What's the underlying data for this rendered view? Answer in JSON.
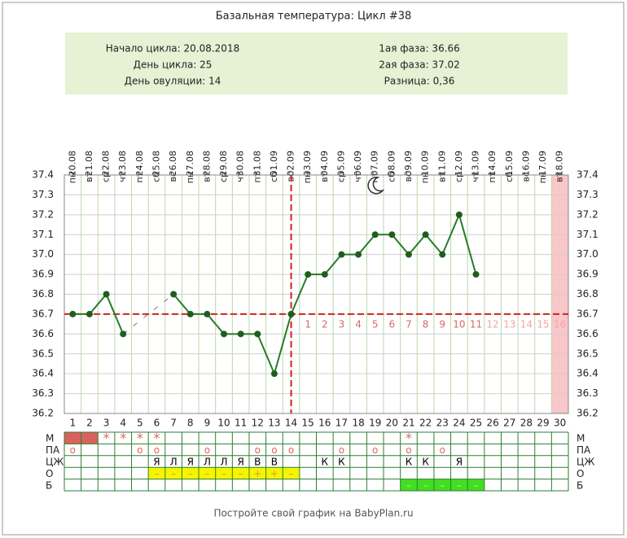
{
  "chart_data": {
    "type": "line",
    "title": "Базальная температура: Цикл #38",
    "info_left": [
      "Начало цикла: 20.08.2018",
      "День цикла: 25",
      "День овуляции: 14"
    ],
    "info_right": [
      "1ая фаза: 36.66",
      "2ая фаза: 37.02",
      "Разница: 0,36"
    ],
    "dates": [
      "20.08",
      "21.08",
      "22.08",
      "23.08",
      "24.08",
      "25.08",
      "26.08",
      "27.08",
      "28.08",
      "29.08",
      "30.08",
      "31.08",
      "01.09",
      "02.09",
      "03.09",
      "04.09",
      "05.09",
      "06.09",
      "07.09",
      "08.09",
      "09.09",
      "10.09",
      "11.09",
      "12.09",
      "13.09",
      "14.09",
      "15.09",
      "16.09",
      "17.09",
      "18.09"
    ],
    "weekdays": [
      "пн",
      "вт",
      "ср",
      "чт",
      "пт",
      "сб",
      "вс",
      "пн",
      "вт",
      "ср",
      "чт",
      "пт",
      "сб",
      "вс",
      "пн",
      "вт",
      "ср",
      "чт",
      "пт",
      "сб",
      "вс",
      "пн",
      "вт",
      "ср",
      "чт",
      "пт",
      "сб",
      "вс",
      "пн",
      "вт"
    ],
    "categories": [
      "1",
      "2",
      "3",
      "4",
      "5",
      "6",
      "7",
      "8",
      "9",
      "10",
      "11",
      "12",
      "13",
      "14",
      "15",
      "16",
      "17",
      "18",
      "19",
      "20",
      "21",
      "22",
      "23",
      "24",
      "25",
      "26",
      "27",
      "28",
      "29",
      "30"
    ],
    "values": [
      36.7,
      36.7,
      36.8,
      36.6,
      null,
      null,
      36.8,
      36.7,
      36.7,
      36.6,
      36.6,
      36.6,
      36.4,
      36.7,
      36.9,
      36.9,
      37.0,
      37.0,
      37.1,
      37.1,
      37.0,
      37.1,
      37.0,
      37.2,
      36.9,
      null,
      null,
      null,
      null,
      null
    ],
    "color": "#2a7a2a",
    "ylim": [
      36.2,
      37.4
    ],
    "yticks": [
      36.2,
      36.3,
      36.4,
      36.5,
      36.6,
      36.7,
      36.8,
      36.9,
      {
        "value": 37,
        "label": "37.0"
      },
      37.1,
      37.2,
      37.3,
      37.4
    ],
    "grid": true,
    "coverline": 36.7,
    "ovulation_day": 14,
    "luteal_days": [
      1,
      2,
      3,
      4,
      5,
      6,
      7,
      8,
      9,
      10,
      11,
      12,
      13,
      14,
      15,
      16
    ],
    "shaded_days": [
      30
    ],
    "table": {
      "rows": [
        {
          "label": "М",
          "cells": [
            null,
            null,
            "*",
            "*",
            "*",
            "*",
            null,
            null,
            null,
            null,
            null,
            null,
            null,
            null,
            null,
            null,
            null,
            null,
            null,
            null,
            "*",
            null,
            null,
            null,
            null,
            null,
            null,
            null,
            null,
            null
          ],
          "fill_days": [
            1,
            2
          ],
          "fill": "#d9625f",
          "text_color": "#e06666"
        },
        {
          "label": "ПА",
          "cells": [
            "о",
            null,
            null,
            null,
            "о",
            "о",
            null,
            null,
            "о",
            null,
            null,
            "о",
            "о",
            "о",
            null,
            null,
            "о",
            null,
            "о",
            null,
            "о",
            null,
            "о",
            null,
            null,
            null,
            null,
            null,
            null,
            null
          ],
          "fill_days": [],
          "fill": "#ffffff",
          "text_color": "#e06666"
        },
        {
          "label": "ЦЖ",
          "cells": [
            null,
            null,
            null,
            null,
            null,
            "Я",
            "Л",
            "Я",
            "Л",
            "Л",
            "Я",
            "В",
            "В",
            null,
            null,
            "К",
            "К",
            null,
            null,
            null,
            "К",
            "К",
            null,
            "Я",
            null,
            null,
            null,
            null,
            null,
            null
          ],
          "fill_days": [],
          "fill": "#ffffff",
          "text_color": "#000000"
        },
        {
          "label": "О",
          "cells": [
            null,
            null,
            null,
            null,
            null,
            "–",
            "–",
            "–",
            "–",
            "–",
            "–",
            "+",
            "+",
            "–",
            null,
            null,
            null,
            null,
            null,
            null,
            null,
            null,
            null,
            null,
            null,
            null,
            null,
            null,
            null,
            null
          ],
          "fill_days": [
            6,
            7,
            8,
            9,
            10,
            11,
            12,
            13,
            14
          ],
          "fill": "#f5f500",
          "text_color": "#e69138"
        },
        {
          "label": "Б",
          "cells": [
            null,
            null,
            null,
            null,
            null,
            null,
            null,
            null,
            null,
            null,
            null,
            null,
            null,
            null,
            null,
            null,
            null,
            null,
            null,
            null,
            "–",
            "–",
            "–",
            "–",
            "–",
            null,
            null,
            null,
            null,
            null
          ],
          "fill_days": [
            21,
            22,
            23,
            24,
            25
          ],
          "fill": "#44dd22",
          "text_color": "#b6f0a0"
        }
      ]
    },
    "footer": "Постройте свой график на BabyPlan.ru"
  }
}
